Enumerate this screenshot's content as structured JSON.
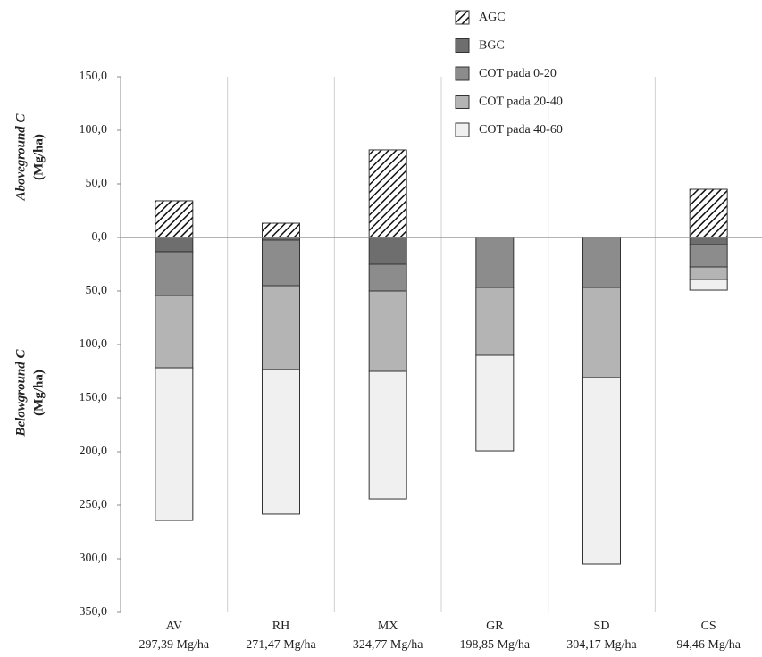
{
  "chart_data": {
    "type": "stacked_bar",
    "ylabel_upper": {
      "title": "Aboveground C",
      "unit": "(Mg/ha)"
    },
    "ylabel_lower": {
      "title": "Belowground C",
      "unit": "(Mg/ha)"
    },
    "categories": [
      "AV",
      "RH",
      "MX",
      "GR",
      "SD",
      "CS"
    ],
    "category_totals": [
      "297,39 Mg/ha",
      "271,47 Mg/ha",
      "324,77 Mg/ha",
      "198,85 Mg/ha",
      "304,17 Mg/ha",
      "94,46 Mg/ha"
    ],
    "series": [
      {
        "name": "AGC",
        "color": "#ffffff",
        "pattern": "hatch",
        "values": [
          34.2,
          13.3,
          81.7,
          0,
          0,
          45
        ]
      },
      {
        "name": "BGC",
        "color": "#6e6e6e",
        "values": [
          -13.3,
          -2.5,
          -25,
          0,
          0,
          -6.7
        ]
      },
      {
        "name": "COT pada 0-20",
        "color": "#8c8c8c",
        "values": [
          -40.9,
          -42.5,
          -25,
          -46.7,
          -46.7,
          -20.8
        ]
      },
      {
        "name": "COT pada 20-40",
        "color": "#b4b4b4",
        "values": [
          -67.5,
          -78.3,
          -75,
          -63.3,
          -84.1,
          -11.7
        ]
      },
      {
        "name": "COT pada 40-60",
        "color": "#f0f0f0",
        "values": [
          -142.5,
          -135,
          -119.2,
          -89.2,
          -174.2,
          -10
        ]
      }
    ],
    "ylim": [
      -350,
      150
    ],
    "yticks": [
      {
        "value": 150,
        "label": "150,0"
      },
      {
        "value": 100,
        "label": "100,0"
      },
      {
        "value": 50,
        "label": "50,0"
      },
      {
        "value": 0,
        "label": "0,0"
      },
      {
        "value": -50,
        "label": "50,0"
      },
      {
        "value": -100,
        "label": "100,0"
      },
      {
        "value": -150,
        "label": "150,0"
      },
      {
        "value": -200,
        "label": "200,0"
      },
      {
        "value": -250,
        "label": "250,0"
      },
      {
        "value": -300,
        "label": "300,0"
      },
      {
        "value": -350,
        "label": "350,0"
      }
    ],
    "grid": true,
    "legend": "top-right"
  }
}
